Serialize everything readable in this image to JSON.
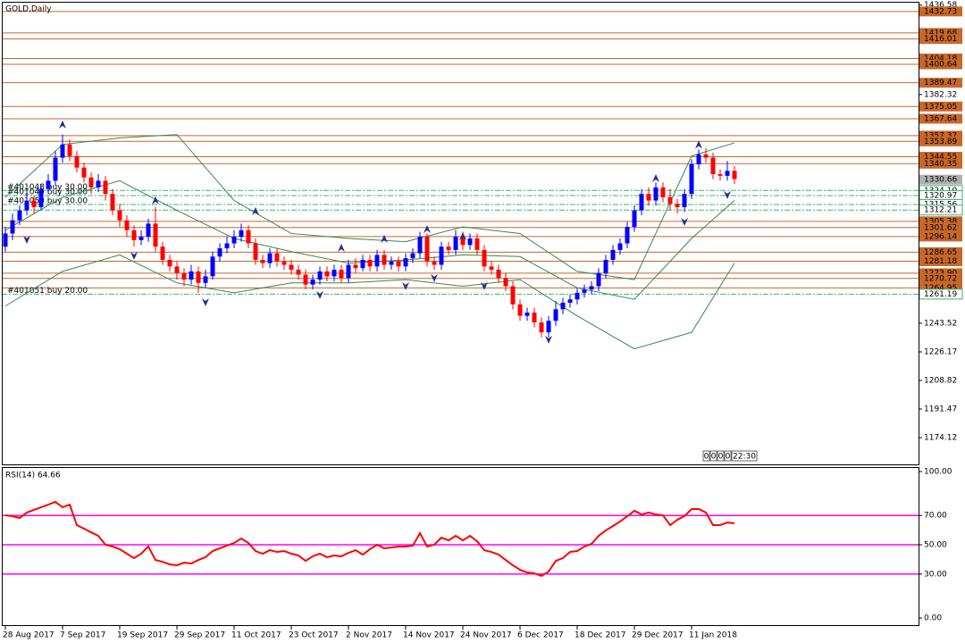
{
  "chart_data": {
    "type": "candlestick",
    "title": "GOLD,Daily",
    "ylim": [
      1157.88,
      1438.6
    ],
    "yticks": [
      1436.58,
      1382.32,
      1243.52,
      1226.17,
      1208.82,
      1191.47,
      1174.12
    ],
    "up_color": "#0000ff",
    "down_color": "#ff0000",
    "categories": [
      "28 Aug 2017",
      null,
      null,
      null,
      null,
      null,
      null,
      null,
      "7 Sep 2017",
      null,
      null,
      null,
      null,
      null,
      null,
      null,
      "19 Sep 2017",
      null,
      null,
      null,
      null,
      null,
      null,
      null,
      "29 Sep 2017",
      null,
      null,
      null,
      null,
      null,
      null,
      null,
      "11 Oct 2017",
      null,
      null,
      null,
      null,
      null,
      null,
      null,
      "23 Oct 2017",
      null,
      null,
      null,
      null,
      null,
      null,
      null,
      "2 Nov 2017",
      null,
      null,
      null,
      null,
      null,
      null,
      null,
      "14 Nov 2017",
      null,
      null,
      null,
      null,
      null,
      null,
      null,
      "24 Nov 2017",
      null,
      null,
      null,
      null,
      null,
      null,
      null,
      "6 Dec 2017",
      null,
      null,
      null,
      null,
      null,
      null,
      null,
      "18 Dec 2017",
      null,
      null,
      null,
      null,
      null,
      null,
      null,
      "29 Dec 2017",
      null,
      null,
      null,
      null,
      null,
      null,
      null,
      "11 Jan 2018",
      null,
      null,
      null,
      null,
      null,
      null
    ],
    "candles": [
      [
        1290,
        1302,
        1287,
        1298
      ],
      [
        1298,
        1310,
        1294,
        1306
      ],
      [
        1306,
        1315,
        1303,
        1312
      ],
      [
        1312,
        1322,
        1309,
        1318
      ],
      [
        1318,
        1321,
        1310,
        1314
      ],
      [
        1314,
        1328,
        1312,
        1325
      ],
      [
        1325,
        1334,
        1322,
        1330
      ],
      [
        1330,
        1348,
        1327,
        1344
      ],
      [
        1344,
        1358,
        1341,
        1352
      ],
      [
        1352,
        1355,
        1342,
        1345
      ],
      [
        1345,
        1348,
        1335,
        1338
      ],
      [
        1338,
        1341,
        1329,
        1332
      ],
      [
        1332,
        1335,
        1322,
        1326
      ],
      [
        1326,
        1334,
        1323,
        1330
      ],
      [
        1330,
        1333,
        1318,
        1322
      ],
      [
        1322,
        1325,
        1309,
        1312
      ],
      [
        1312,
        1316,
        1302,
        1306
      ],
      [
        1306,
        1309,
        1296,
        1300
      ],
      [
        1300,
        1303,
        1290,
        1294
      ],
      [
        1294,
        1300,
        1291,
        1296
      ],
      [
        1296,
        1307,
        1293,
        1304
      ],
      [
        1304,
        1314,
        1287,
        1290
      ],
      [
        1290,
        1293,
        1279,
        1282
      ],
      [
        1282,
        1285,
        1275,
        1278
      ],
      [
        1278,
        1281,
        1270,
        1274
      ],
      [
        1274,
        1277,
        1266,
        1270
      ],
      [
        1270,
        1279,
        1267,
        1275
      ],
      [
        1275,
        1278,
        1262,
        1268
      ],
      [
        1268,
        1276,
        1265,
        1272
      ],
      [
        1272,
        1287,
        1270,
        1284
      ],
      [
        1284,
        1292,
        1281,
        1289
      ],
      [
        1289,
        1296,
        1286,
        1292
      ],
      [
        1292,
        1300,
        1289,
        1296
      ],
      [
        1296,
        1304,
        1293,
        1300
      ],
      [
        1300,
        1303,
        1289,
        1292
      ],
      [
        1292,
        1295,
        1279,
        1282
      ],
      [
        1282,
        1285,
        1277,
        1280
      ],
      [
        1280,
        1289,
        1277,
        1286
      ],
      [
        1286,
        1289,
        1278,
        1281
      ],
      [
        1281,
        1284,
        1276,
        1279
      ],
      [
        1279,
        1282,
        1273,
        1276
      ],
      [
        1276,
        1279,
        1270,
        1273
      ],
      [
        1273,
        1276,
        1264,
        1267
      ],
      [
        1267,
        1273,
        1264,
        1270
      ],
      [
        1270,
        1278,
        1267,
        1275
      ],
      [
        1275,
        1278,
        1269,
        1272
      ],
      [
        1272,
        1279,
        1269,
        1276
      ],
      [
        1276,
        1279,
        1268,
        1271
      ],
      [
        1271,
        1282,
        1268,
        1279
      ],
      [
        1279,
        1283,
        1274,
        1277
      ],
      [
        1277,
        1285,
        1275,
        1282
      ],
      [
        1282,
        1285,
        1275,
        1278
      ],
      [
        1278,
        1288,
        1275,
        1285
      ],
      [
        1285,
        1288,
        1276,
        1279
      ],
      [
        1279,
        1284,
        1276,
        1281
      ],
      [
        1281,
        1284,
        1275,
        1278
      ],
      [
        1278,
        1286,
        1275,
        1283
      ],
      [
        1283,
        1289,
        1280,
        1286
      ],
      [
        1286,
        1299,
        1283,
        1296
      ],
      [
        1296,
        1298,
        1278,
        1281
      ],
      [
        1281,
        1284,
        1276,
        1279
      ],
      [
        1279,
        1293,
        1276,
        1290
      ],
      [
        1290,
        1293,
        1285,
        1288
      ],
      [
        1288,
        1300,
        1285,
        1296
      ],
      [
        1296,
        1299,
        1288,
        1291
      ],
      [
        1291,
        1298,
        1288,
        1295
      ],
      [
        1295,
        1298,
        1285,
        1288
      ],
      [
        1288,
        1291,
        1275,
        1278
      ],
      [
        1278,
        1281,
        1273,
        1276
      ],
      [
        1276,
        1279,
        1268,
        1271
      ],
      [
        1271,
        1274,
        1263,
        1266
      ],
      [
        1266,
        1269,
        1252,
        1255
      ],
      [
        1255,
        1258,
        1245,
        1248
      ],
      [
        1248,
        1253,
        1245,
        1250
      ],
      [
        1250,
        1253,
        1241,
        1244
      ],
      [
        1244,
        1247,
        1235,
        1238
      ],
      [
        1238,
        1248,
        1235,
        1245
      ],
      [
        1245,
        1257,
        1242,
        1252
      ],
      [
        1252,
        1259,
        1249,
        1256
      ],
      [
        1256,
        1261,
        1253,
        1258
      ],
      [
        1258,
        1265,
        1255,
        1262
      ],
      [
        1262,
        1267,
        1259,
        1264
      ],
      [
        1264,
        1269,
        1261,
        1266
      ],
      [
        1266,
        1277,
        1263,
        1274
      ],
      [
        1274,
        1285,
        1271,
        1282
      ],
      [
        1282,
        1291,
        1279,
        1288
      ],
      [
        1288,
        1295,
        1285,
        1292
      ],
      [
        1292,
        1305,
        1289,
        1302
      ],
      [
        1302,
        1315,
        1299,
        1312
      ],
      [
        1312,
        1325,
        1309,
        1322
      ],
      [
        1322,
        1326,
        1315,
        1318
      ],
      [
        1318,
        1329,
        1315,
        1326
      ],
      [
        1326,
        1329,
        1317,
        1320
      ],
      [
        1320,
        1325,
        1312,
        1316
      ],
      [
        1316,
        1319,
        1310,
        1314
      ],
      [
        1314,
        1325,
        1311,
        1322
      ],
      [
        1322,
        1343,
        1319,
        1340
      ],
      [
        1340,
        1349,
        1337,
        1346
      ],
      [
        1346,
        1350,
        1341,
        1344
      ],
      [
        1344,
        1347,
        1331,
        1334
      ],
      [
        1334,
        1337,
        1330,
        1333
      ],
      [
        1333,
        1342,
        1330,
        1336
      ],
      [
        1336,
        1339,
        1328,
        1331
      ]
    ],
    "bands": {
      "color": "#2e8b57",
      "index": [
        0,
        8,
        16,
        24,
        32,
        40,
        48,
        56,
        64,
        72,
        80,
        88,
        96,
        102
      ],
      "upper": [
        1320,
        1352,
        1356,
        1358,
        1318,
        1298,
        1295,
        1293,
        1302,
        1298,
        1275,
        1270,
        1345,
        1353
      ],
      "middle": [
        1300,
        1320,
        1330,
        1312,
        1295,
        1287,
        1280,
        1282,
        1285,
        1284,
        1265,
        1258,
        1295,
        1318
      ],
      "lower": [
        1254,
        1275,
        1285,
        1268,
        1262,
        1268,
        1268,
        1270,
        1266,
        1270,
        1248,
        1228,
        1238,
        1280
      ]
    },
    "fractals": {
      "color": "#1f2f8f",
      "up": [
        [
          8,
          1363.9
        ],
        [
          21,
          1317.8
        ],
        [
          35,
          1311.3
        ],
        [
          47,
          1289.0
        ],
        [
          53,
          1294.5
        ],
        [
          59,
          1300.4
        ],
        [
          64,
          1296.1
        ],
        [
          91,
          1331.3
        ],
        [
          97,
          1351.6
        ]
      ],
      "down": [
        [
          3,
          1294.5
        ],
        [
          18,
          1284.7
        ],
        [
          28,
          1256.5
        ],
        [
          44,
          1260.9
        ],
        [
          56,
          1266.3
        ],
        [
          60,
          1271.2
        ],
        [
          67,
          1266.3
        ],
        [
          76,
          1233.8
        ],
        [
          95,
          1305.3
        ],
        [
          101,
          1321.6
        ]
      ]
    },
    "level_color": "#c8672a",
    "resistance_levels": [
      1432.73,
      1419.68,
      1416.01,
      1404.18,
      1400.64,
      1389.47,
      1375.05,
      1367.64,
      1357.37,
      1353.89,
      1344.55,
      1340.35,
      1305.38,
      1301.62,
      1296.14,
      1286.65,
      1281.18,
      {
        "value": 1273.9,
        "label": "1273.90"
      },
      1270.72,
      1264.95
    ],
    "order_color": "#3cb371",
    "order_levels": [
      {
        "value": 1324.1,
        "label": "1324.10",
        "order": "#401048 buy 30.00"
      },
      {
        "value": 1320.97,
        "order": "#401049 buy 30.00"
      },
      {
        "value": 1315.56,
        "order": "#401050 buy 30.00"
      },
      {
        "value": 1312.21
      },
      {
        "value": 1261.19,
        "order": "#401051 buy 20.00"
      }
    ],
    "last_price": 1330.66,
    "timer_digits": [
      "0",
      "0",
      "0",
      "0"
    ],
    "timer": "22:30",
    "rsi": {
      "title": "RSI(14) 64.66",
      "color": "#ff0000",
      "level_color": "#ff00ff",
      "ylim": [
        0,
        100
      ],
      "yticks": [
        {
          "value": 100,
          "label": "100.00"
        },
        {
          "value": 70,
          "label": "70.00"
        },
        {
          "value": 50,
          "label": "50.00"
        },
        {
          "value": 30,
          "label": "30.00"
        },
        {
          "value": 0,
          "label": "0.00"
        }
      ],
      "levels": [
        70,
        50,
        30
      ],
      "values": [
        70.1,
        69.5,
        68.3,
        72.0,
        73.8,
        75.6,
        77.4,
        79.3,
        75.6,
        77.4,
        63.4,
        61.0,
        58.5,
        56.1,
        50.0,
        48.8,
        47.0,
        43.9,
        40.9,
        43.9,
        48.8,
        39.6,
        38.4,
        36.6,
        36.0,
        37.8,
        37.2,
        39.6,
        41.5,
        45.7,
        47.6,
        49.4,
        51.2,
        54.3,
        51.2,
        45.7,
        43.9,
        46.3,
        45.1,
        45.7,
        43.9,
        42.7,
        39.0,
        42.1,
        43.9,
        41.5,
        42.7,
        42.1,
        44.5,
        46.3,
        43.3,
        47.0,
        50.0,
        47.6,
        48.2,
        48.8,
        48.8,
        49.4,
        57.9,
        48.8,
        50.0,
        54.9,
        53.0,
        56.1,
        53.0,
        56.1,
        52.4,
        46.3,
        45.1,
        43.3,
        39.6,
        36.0,
        32.9,
        31.1,
        30.5,
        28.7,
        31.7,
        39.0,
        40.9,
        45.1,
        45.7,
        48.8,
        50.6,
        56.1,
        59.8,
        62.8,
        65.9,
        69.5,
        73.2,
        70.7,
        72.0,
        70.7,
        70.1,
        63.4,
        67.1,
        69.5,
        74.4,
        74.4,
        72.0,
        63.4,
        63.4,
        65.2,
        64.66
      ]
    }
  }
}
